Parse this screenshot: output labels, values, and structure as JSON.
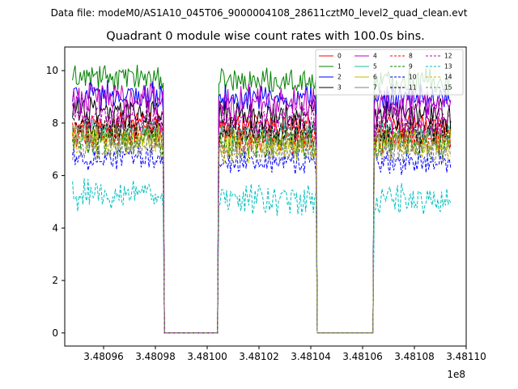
{
  "chart_data": {
    "type": "line",
    "suptitle": "Data file: modeM0/AS1A10_045T06_9000004108_28611cztM0_level2_quad_clean.evt",
    "title": "Quadrant 0 module wise count rates with 100.0s bins.",
    "xlabel": "",
    "ylabel": "",
    "x_offset_label": "1e8",
    "xlim": [
      3.480945,
      3.4811
    ],
    "ylim": [
      -0.5,
      10.9
    ],
    "x_ticks": [
      3.48096,
      3.48098,
      3.481,
      3.48102,
      3.48104,
      3.48106,
      3.48108,
      3.4811
    ],
    "x_tick_labels": [
      "3.48096",
      "3.48098",
      "3.48100",
      "3.48102",
      "3.48104",
      "3.48106",
      "3.48108",
      "3.48110"
    ],
    "y_ticks": [
      0,
      2,
      4,
      6,
      8,
      10
    ],
    "y_tick_labels": [
      "0",
      "2",
      "4",
      "6",
      "8",
      "10"
    ],
    "segments_x1e8": [
      {
        "start": 3.480948,
        "end": 3.480982
      },
      {
        "start": 3.481006,
        "end": 3.481041
      },
      {
        "start": 3.481066,
        "end": 3.481094
      }
    ],
    "gaps_x1e8": [
      {
        "start": 3.4809835,
        "end": 3.4810045
      },
      {
        "start": 3.4810425,
        "end": 3.4810645
      }
    ],
    "legend_position": "top-right",
    "series": [
      {
        "name": "0",
        "color": "#ff0000",
        "dash": "solid",
        "mean": 7.9
      },
      {
        "name": "1",
        "color": "#008000",
        "dash": "solid",
        "mean": 9.6
      },
      {
        "name": "2",
        "color": "#0000ff",
        "dash": "solid",
        "mean": 8.9
      },
      {
        "name": "3",
        "color": "#000000",
        "dash": "solid",
        "mean": 8.3
      },
      {
        "name": "4",
        "color": "#bf00bf",
        "dash": "solid",
        "mean": 8.8
      },
      {
        "name": "5",
        "color": "#1abc9c",
        "dash": "solid",
        "mean": 7.6
      },
      {
        "name": "6",
        "color": "#bfbf00",
        "dash": "solid",
        "mean": 7.3
      },
      {
        "name": "7",
        "color": "#808080",
        "dash": "solid",
        "mean": 7.5
      },
      {
        "name": "8",
        "color": "#ff0000",
        "dash": "dashed",
        "mean": 7.4
      },
      {
        "name": "9",
        "color": "#008000",
        "dash": "dashed",
        "mean": 7.2
      },
      {
        "name": "10",
        "color": "#0000ff",
        "dash": "dashed",
        "mean": 6.5
      },
      {
        "name": "11",
        "color": "#000000",
        "dash": "dashed",
        "mean": 7.7
      },
      {
        "name": "12",
        "color": "#bf00bf",
        "dash": "dashed",
        "mean": 8.1
      },
      {
        "name": "13",
        "color": "#00bfbf",
        "dash": "dashed",
        "mean": 5.1
      },
      {
        "name": "14",
        "color": "#bfbf00",
        "dash": "dashed",
        "mean": 7.1
      },
      {
        "name": "15",
        "color": "#808080",
        "dash": "dashed",
        "mean": 6.9
      }
    ]
  }
}
